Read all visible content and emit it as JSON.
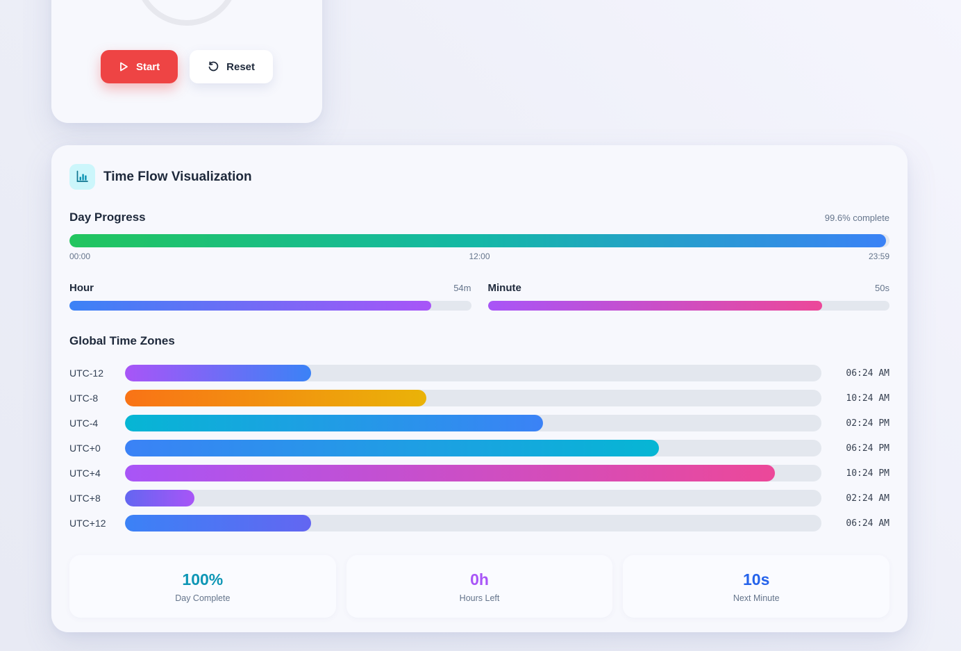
{
  "timer_card": {
    "start_label": "Start",
    "reset_label": "Reset"
  },
  "visualization": {
    "title": "Time Flow Visualization",
    "day_progress": {
      "label": "Day Progress",
      "status": "99.6% complete",
      "percent": 99.6,
      "gradient": [
        "#22c55e",
        "#14b8a6",
        "#3b82f6"
      ],
      "ticks": [
        "00:00",
        "12:00",
        "23:59"
      ]
    },
    "sub_progress": [
      {
        "label": "Hour",
        "value": "54m",
        "percent": 90,
        "gradient": [
          "#3b82f6",
          "#a855f7"
        ]
      },
      {
        "label": "Minute",
        "value": "50s",
        "percent": 83.3,
        "gradient": [
          "#a855f7",
          "#ec4899"
        ]
      }
    ],
    "timezones": {
      "heading": "Global Time Zones",
      "rows": [
        {
          "zone": "UTC-12",
          "time": "06:24 AM",
          "percent": 26.7,
          "gradient": [
            "#a855f7",
            "#3b82f6"
          ]
        },
        {
          "zone": "UTC-8",
          "time": "10:24 AM",
          "percent": 43.3,
          "gradient": [
            "#f97316",
            "#eab308"
          ]
        },
        {
          "zone": "UTC-4",
          "time": "02:24 PM",
          "percent": 60.0,
          "gradient": [
            "#06b6d4",
            "#3b82f6"
          ]
        },
        {
          "zone": "UTC+0",
          "time": "06:24 PM",
          "percent": 76.7,
          "gradient": [
            "#3b82f6",
            "#06b6d4"
          ]
        },
        {
          "zone": "UTC+4",
          "time": "10:24 PM",
          "percent": 93.3,
          "gradient": [
            "#a855f7",
            "#ec4899"
          ]
        },
        {
          "zone": "UTC+8",
          "time": "02:24 AM",
          "percent": 10.0,
          "gradient": [
            "#6366f1",
            "#a855f7"
          ]
        },
        {
          "zone": "UTC+12",
          "time": "06:24 AM",
          "percent": 26.7,
          "gradient": [
            "#3b82f6",
            "#6366f1"
          ]
        }
      ]
    },
    "stats": [
      {
        "value": "100%",
        "label": "Day Complete",
        "color": "#0e96b5"
      },
      {
        "value": "0h",
        "label": "Hours Left",
        "color": "#a855f7"
      },
      {
        "value": "10s",
        "label": "Next Minute",
        "color": "#2563eb"
      }
    ]
  }
}
